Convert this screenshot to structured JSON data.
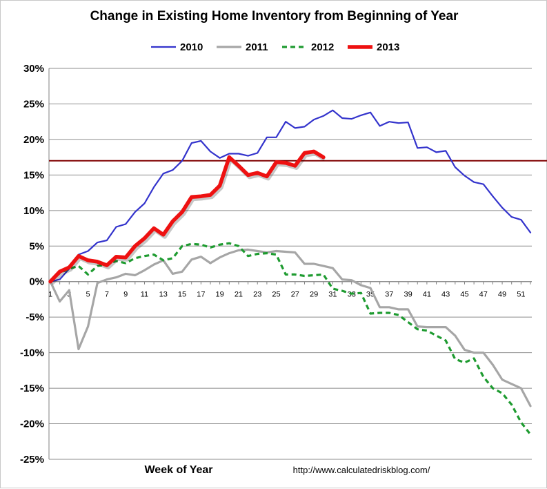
{
  "chart_data": {
    "type": "line",
    "title": "Change in Existing Home Inventory from Beginning of Year",
    "xlabel": "Week of Year",
    "ylabel": "",
    "source": "http://www.calculatedriskblog.com/",
    "ylim": [
      -25,
      30
    ],
    "xlim": [
      1,
      52
    ],
    "grid": "horizontal",
    "legend_position": "top",
    "y_ticks": [
      "30%",
      "25%",
      "20%",
      "15%",
      "10%",
      "5%",
      "0%",
      "-5%",
      "-10%",
      "-15%",
      "-20%",
      "-25%"
    ],
    "y_tick_values": [
      30,
      25,
      20,
      15,
      10,
      5,
      0,
      -5,
      -10,
      -15,
      -20,
      -25
    ],
    "x_ticks": [
      "1",
      "3",
      "5",
      "7",
      "9",
      "11",
      "13",
      "15",
      "17",
      "19",
      "21",
      "23",
      "25",
      "27",
      "29",
      "31",
      "33",
      "35",
      "37",
      "39",
      "41",
      "43",
      "45",
      "47",
      "49",
      "51"
    ],
    "reference_line": {
      "y": 17,
      "color": "#800000"
    },
    "series": [
      {
        "name": "2010",
        "color": "#3333cc",
        "style": "solid",
        "weight": "thin",
        "values": [
          0,
          0.3,
          1.8,
          3.8,
          4.3,
          5.5,
          5.8,
          7.7,
          8.1,
          9.8,
          11.0,
          13.3,
          15.2,
          15.7,
          17.0,
          19.5,
          19.8,
          18.3,
          17.4,
          18.0,
          18.0,
          17.7,
          18.1,
          20.3,
          20.3,
          22.5,
          21.6,
          21.8,
          22.8,
          23.3,
          24.1,
          23.0,
          22.9,
          23.4,
          23.8,
          21.9,
          22.5,
          22.3,
          22.4,
          18.8,
          18.9,
          18.2,
          18.4,
          16.1,
          14.9,
          14.0,
          13.7,
          12.0,
          10.4,
          9.1,
          8.7,
          6.9
        ]
      },
      {
        "name": "2011",
        "color": "#a6a6a6",
        "style": "solid",
        "weight": "medium",
        "values": [
          0,
          -2.8,
          -1.2,
          -9.5,
          -6.3,
          -0.2,
          0.3,
          0.6,
          1.1,
          0.9,
          1.6,
          2.4,
          3.0,
          1.1,
          1.4,
          3.1,
          3.5,
          2.6,
          3.4,
          4.0,
          4.4,
          4.5,
          4.3,
          4.1,
          4.3,
          4.2,
          4.1,
          2.5,
          2.5,
          2.2,
          1.9,
          0.3,
          0.2,
          -0.5,
          -0.9,
          -3.6,
          -3.6,
          -3.9,
          -3.9,
          -6.3,
          -6.4,
          -6.4,
          -6.4,
          -7.6,
          -9.6,
          -10.0,
          -10.0,
          -11.7,
          -13.8,
          -14.4,
          -15.0,
          -17.5
        ]
      },
      {
        "name": "2012",
        "color": "#1e9b30",
        "style": "dashed",
        "weight": "medium",
        "values": [
          0,
          1.2,
          1.8,
          2.2,
          1.0,
          2.2,
          2.4,
          2.9,
          2.6,
          3.3,
          3.6,
          3.8,
          3.0,
          3.3,
          5.0,
          5.3,
          5.2,
          4.8,
          5.2,
          5.4,
          5.0,
          3.6,
          3.9,
          4.0,
          3.8,
          1.0,
          1.0,
          0.8,
          0.9,
          1.0,
          -1.0,
          -1.3,
          -1.7,
          -1.6,
          -4.5,
          -4.4,
          -4.4,
          -4.7,
          -5.7,
          -6.7,
          -6.9,
          -7.6,
          -8.3,
          -10.9,
          -11.4,
          -10.8,
          -13.4,
          -15.0,
          -15.7,
          -17.3,
          -19.8,
          -21.5
        ]
      },
      {
        "name": "2013",
        "color": "#ee1111",
        "style": "solid",
        "weight": "thick",
        "values": [
          0,
          1.4,
          2.0,
          3.6,
          3.0,
          2.8,
          2.3,
          3.5,
          3.4,
          5.0,
          6.1,
          7.5,
          6.6,
          8.5,
          9.8,
          11.9,
          12.0,
          12.2,
          13.5,
          17.5,
          16.3,
          15.0,
          15.3,
          14.8,
          16.8,
          16.7,
          16.3,
          18.1,
          18.3,
          17.5
        ]
      }
    ]
  }
}
